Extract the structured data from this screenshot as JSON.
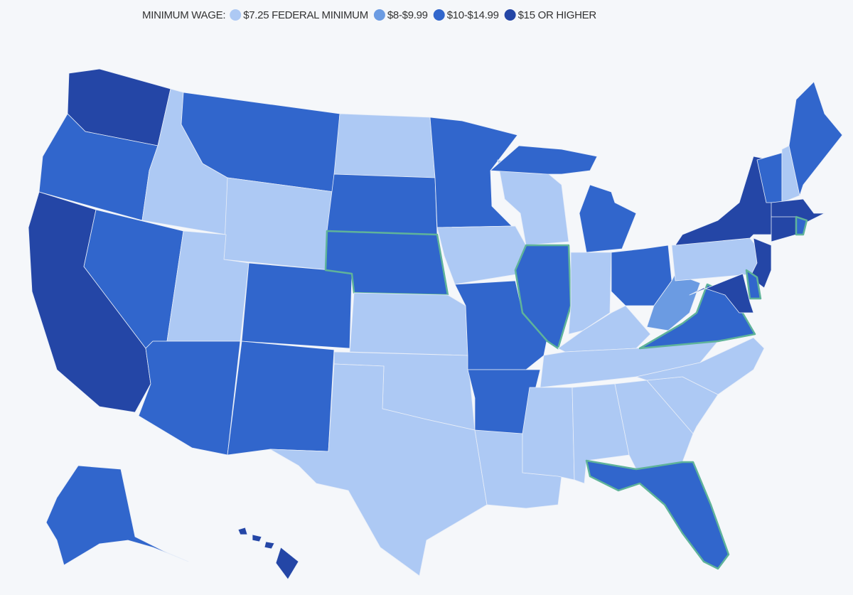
{
  "legend": {
    "title": "MINIMUM WAGE:",
    "items": [
      {
        "label": "$7.25 FEDERAL MINIMUM",
        "color": "#adc9f4"
      },
      {
        "label": "$8-$9.99",
        "color": "#6b9be2"
      },
      {
        "label": "$10-$14.99",
        "color": "#3166cc"
      },
      {
        "label": "$15 OR HIGHER",
        "color": "#2446a6"
      }
    ]
  },
  "outline_color": "#5fb39a",
  "regions": [
    {
      "tier": 3,
      "outlined": false
    },
    {
      "tier": 2,
      "outlined": false
    },
    {
      "tier": 3,
      "outlined": false
    },
    {
      "tier": 0,
      "outlined": false
    },
    {
      "tier": 2,
      "outlined": false
    },
    {
      "tier": 2,
      "outlined": false
    },
    {
      "tier": 0,
      "outlined": false
    },
    {
      "tier": 0,
      "outlined": false
    },
    {
      "tier": 2,
      "outlined": false
    },
    {
      "tier": 2,
      "outlined": false
    },
    {
      "tier": 2,
      "outlined": false
    },
    {
      "tier": 0,
      "outlined": false
    },
    {
      "tier": 2,
      "outlined": false
    },
    {
      "tier": 2,
      "outlined": true
    },
    {
      "tier": 0,
      "outlined": false
    },
    {
      "tier": 0,
      "outlined": false
    },
    {
      "tier": 0,
      "outlined": false
    },
    {
      "tier": 2,
      "outlined": false
    },
    {
      "tier": 0,
      "outlined": false
    },
    {
      "tier": 2,
      "outlined": false
    },
    {
      "tier": 2,
      "outlined": false
    },
    {
      "tier": 0,
      "outlined": false
    },
    {
      "tier": 0,
      "outlined": false
    },
    {
      "tier": 2,
      "outlined": true
    },
    {
      "tier": 2,
      "outlined": false
    },
    {
      "tier": 2,
      "outlined": false
    },
    {
      "tier": 0,
      "outlined": false
    },
    {
      "tier": 2,
      "outlined": false
    },
    {
      "tier": 0,
      "outlined": false
    },
    {
      "tier": 0,
      "outlined": false
    },
    {
      "tier": 0,
      "outlined": false
    },
    {
      "tier": 0,
      "outlined": false
    },
    {
      "tier": 0,
      "outlined": false
    },
    {
      "tier": 2,
      "outlined": true
    },
    {
      "tier": 0,
      "outlined": false
    },
    {
      "tier": 0,
      "outlined": false
    },
    {
      "tier": 2,
      "outlined": true
    },
    {
      "tier": 1,
      "outlined": false
    },
    {
      "tier": 0,
      "outlined": false
    },
    {
      "tier": 3,
      "outlined": false
    },
    {
      "tier": 3,
      "outlined": false
    },
    {
      "tier": 2,
      "outlined": true
    },
    {
      "tier": 3,
      "outlined": false
    },
    {
      "tier": 2,
      "outlined": false
    },
    {
      "tier": 0,
      "outlined": false
    },
    {
      "tier": 2,
      "outlined": false
    },
    {
      "tier": 3,
      "outlined": false
    },
    {
      "tier": 3,
      "outlined": false
    },
    {
      "tier": 2,
      "outlined": true
    },
    {
      "tier": 2,
      "outlined": false
    },
    {
      "tier": 3,
      "outlined": false
    }
  ]
}
